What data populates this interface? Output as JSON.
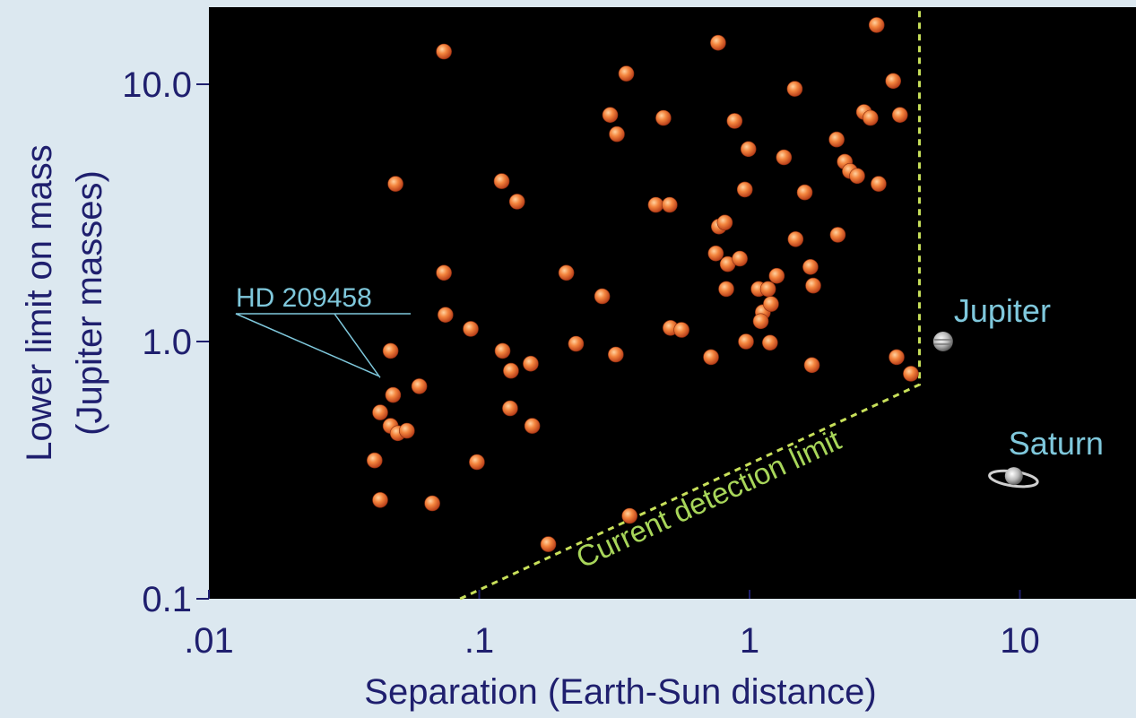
{
  "chart_data": {
    "type": "scatter",
    "xlabel": "Separation (Earth-Sun distance)",
    "ylabel": "Lower limit on mass",
    "ylabel_sub": "(Jupiter masses)",
    "x_scale": "log",
    "y_scale": "log",
    "xlim": [
      0.01,
      30
    ],
    "ylim": [
      0.1,
      20
    ],
    "x_ticks": [
      {
        "value": 0.01,
        "label": ".01"
      },
      {
        "value": 0.1,
        "label": ".1"
      },
      {
        "value": 1,
        "label": "1"
      },
      {
        "value": 10,
        "label": "10"
      }
    ],
    "y_ticks": [
      {
        "value": 0.1,
        "label": "0.1"
      },
      {
        "value": 1,
        "label": "1.0"
      },
      {
        "value": 10,
        "label": "10.0"
      }
    ],
    "grid": false,
    "colors": {
      "plot_background": "#000000",
      "page_background": "#dce8f0",
      "planet_points": "#f07a3a",
      "detection_limit": "#c8e05a",
      "annotation_text": "#7fc8dc",
      "axis_text": "#1f1f6e"
    },
    "points": [
      {
        "x": 0.074,
        "y": 13.4
      },
      {
        "x": 0.049,
        "y": 4.1
      },
      {
        "x": 0.121,
        "y": 4.2
      },
      {
        "x": 0.138,
        "y": 3.5
      },
      {
        "x": 0.074,
        "y": 1.85
      },
      {
        "x": 0.075,
        "y": 1.27
      },
      {
        "x": 0.047,
        "y": 0.92
      },
      {
        "x": 0.048,
        "y": 0.62
      },
      {
        "x": 0.043,
        "y": 0.53
      },
      {
        "x": 0.047,
        "y": 0.47
      },
      {
        "x": 0.05,
        "y": 0.44
      },
      {
        "x": 0.054,
        "y": 0.45
      },
      {
        "x": 0.06,
        "y": 0.67
      },
      {
        "x": 0.041,
        "y": 0.345
      },
      {
        "x": 0.043,
        "y": 0.242
      },
      {
        "x": 0.067,
        "y": 0.235
      },
      {
        "x": 0.093,
        "y": 1.12
      },
      {
        "x": 0.098,
        "y": 0.34
      },
      {
        "x": 0.122,
        "y": 0.92
      },
      {
        "x": 0.131,
        "y": 0.77
      },
      {
        "x": 0.13,
        "y": 0.55
      },
      {
        "x": 0.155,
        "y": 0.82
      },
      {
        "x": 0.157,
        "y": 0.47
      },
      {
        "x": 0.18,
        "y": 0.163
      },
      {
        "x": 0.21,
        "y": 1.85
      },
      {
        "x": 0.228,
        "y": 0.98
      },
      {
        "x": 0.285,
        "y": 1.5
      },
      {
        "x": 0.305,
        "y": 7.6
      },
      {
        "x": 0.323,
        "y": 6.4
      },
      {
        "x": 0.35,
        "y": 11.0
      },
      {
        "x": 0.32,
        "y": 0.89
      },
      {
        "x": 0.36,
        "y": 0.21
      },
      {
        "x": 0.45,
        "y": 3.4
      },
      {
        "x": 0.48,
        "y": 7.4
      },
      {
        "x": 0.506,
        "y": 3.4
      },
      {
        "x": 0.51,
        "y": 1.13
      },
      {
        "x": 0.56,
        "y": 1.11
      },
      {
        "x": 0.72,
        "y": 0.87
      },
      {
        "x": 0.765,
        "y": 14.5
      },
      {
        "x": 0.75,
        "y": 2.2
      },
      {
        "x": 0.77,
        "y": 2.8
      },
      {
        "x": 0.81,
        "y": 2.9
      },
      {
        "x": 0.83,
        "y": 2.0
      },
      {
        "x": 0.82,
        "y": 1.6
      },
      {
        "x": 0.88,
        "y": 7.2
      },
      {
        "x": 0.92,
        "y": 2.1
      },
      {
        "x": 0.96,
        "y": 3.9
      },
      {
        "x": 0.99,
        "y": 5.6
      },
      {
        "x": 0.97,
        "y": 1.0
      },
      {
        "x": 1.08,
        "y": 1.6
      },
      {
        "x": 1.12,
        "y": 1.3
      },
      {
        "x": 1.1,
        "y": 1.2
      },
      {
        "x": 1.17,
        "y": 1.6
      },
      {
        "x": 1.2,
        "y": 1.4
      },
      {
        "x": 1.26,
        "y": 1.8
      },
      {
        "x": 1.19,
        "y": 0.99
      },
      {
        "x": 1.34,
        "y": 5.2
      },
      {
        "x": 1.47,
        "y": 9.6
      },
      {
        "x": 1.48,
        "y": 2.5
      },
      {
        "x": 1.6,
        "y": 3.8
      },
      {
        "x": 1.68,
        "y": 1.95
      },
      {
        "x": 1.72,
        "y": 1.65
      },
      {
        "x": 1.7,
        "y": 0.81
      },
      {
        "x": 2.1,
        "y": 6.1
      },
      {
        "x": 2.12,
        "y": 2.6
      },
      {
        "x": 2.25,
        "y": 5.0
      },
      {
        "x": 2.35,
        "y": 4.6
      },
      {
        "x": 2.5,
        "y": 4.4
      },
      {
        "x": 2.65,
        "y": 7.8
      },
      {
        "x": 2.8,
        "y": 7.4
      },
      {
        "x": 2.95,
        "y": 17.0
      },
      {
        "x": 3.0,
        "y": 4.1
      },
      {
        "x": 3.4,
        "y": 10.3
      },
      {
        "x": 3.6,
        "y": 7.6
      },
      {
        "x": 3.5,
        "y": 0.87
      },
      {
        "x": 3.95,
        "y": 0.75
      }
    ],
    "detection_limit": {
      "label": "Current detection limit",
      "points": [
        [
          0.085,
          0.1
        ],
        [
          4.25,
          0.68
        ],
        [
          4.25,
          20
        ]
      ]
    },
    "reference_planets": [
      {
        "name": "Jupiter",
        "x": 5.2,
        "y": 1.0,
        "icon": "jupiter-icon"
      },
      {
        "name": "Saturn",
        "x": 9.5,
        "y": 0.3,
        "icon": "saturn-icon"
      }
    ],
    "annotations": [
      {
        "text": "HD 209458",
        "x": 0.045,
        "y": 0.69
      }
    ]
  }
}
